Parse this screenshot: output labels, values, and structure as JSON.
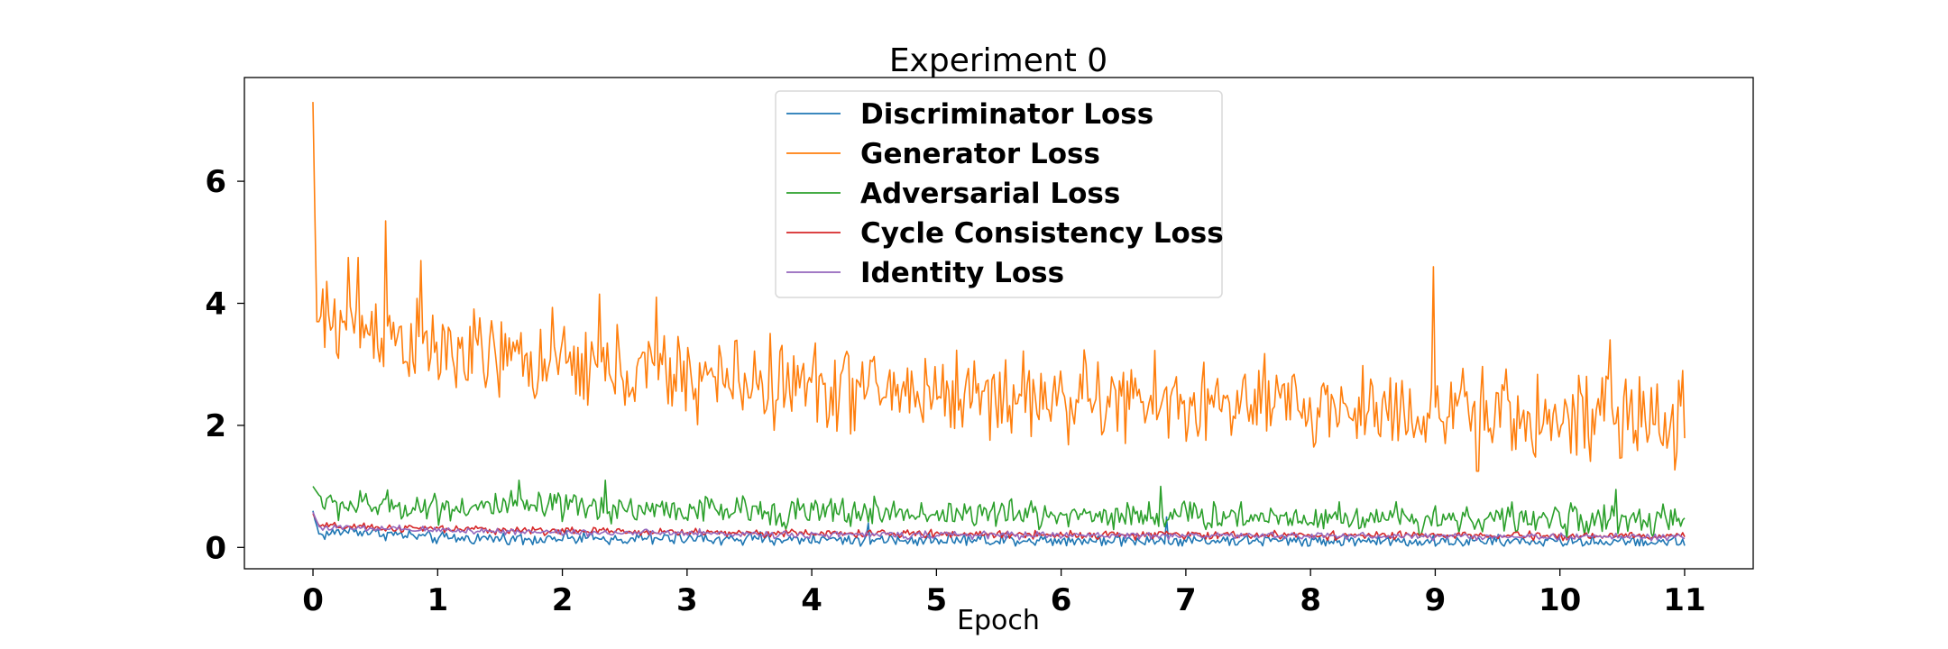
{
  "chart_data": {
    "type": "line",
    "title": "Experiment 0",
    "xlabel": "Epoch",
    "ylabel": "",
    "xlim": [
      -0.55,
      11.55
    ],
    "ylim": [
      -0.35,
      7.7
    ],
    "xticks": [
      0,
      1,
      2,
      3,
      4,
      5,
      6,
      7,
      8,
      9,
      10,
      11
    ],
    "yticks": [
      0,
      2,
      4,
      6
    ],
    "grid": false,
    "legend_position": "top-center",
    "n_points": 700,
    "series": [
      {
        "name": "Discriminator Loss",
        "color": "#1f77b4",
        "anchors": [
          [
            0,
            0.6
          ],
          [
            0.05,
            0.2
          ],
          [
            0.3,
            0.28
          ],
          [
            1,
            0.15
          ],
          [
            3,
            0.14
          ],
          [
            6,
            0.12
          ],
          [
            9,
            0.1
          ],
          [
            11,
            0.09
          ]
        ],
        "noise": 0.07,
        "spikes": [
          [
            0.02,
            0.45
          ],
          [
            4.45,
            0.4
          ],
          [
            6.85,
            0.5
          ]
        ]
      },
      {
        "name": "Generator Loss",
        "color": "#ff7f0e",
        "anchors": [
          [
            0,
            7.3
          ],
          [
            0.03,
            3.7
          ],
          [
            0.15,
            3.7
          ],
          [
            0.5,
            3.6
          ],
          [
            1,
            3.2
          ],
          [
            2,
            3.0
          ],
          [
            3,
            2.8
          ],
          [
            4,
            2.65
          ],
          [
            5,
            2.55
          ],
          [
            6,
            2.45
          ],
          [
            7,
            2.35
          ],
          [
            8,
            2.3
          ],
          [
            9,
            2.25
          ],
          [
            10,
            2.1
          ],
          [
            11,
            2.05
          ]
        ],
        "noise": 0.5,
        "spikes": [
          [
            0.28,
            4.75
          ],
          [
            0.36,
            4.75
          ],
          [
            0.58,
            5.35
          ],
          [
            0.86,
            4.7
          ],
          [
            2.3,
            4.15
          ],
          [
            2.75,
            4.1
          ],
          [
            8.98,
            4.6
          ],
          [
            9.34,
            1.25
          ],
          [
            10.4,
            3.4
          ],
          [
            10.99,
            2.9
          ]
        ]
      },
      {
        "name": "Adversarial Loss",
        "color": "#2ca02c",
        "anchors": [
          [
            0,
            1.0
          ],
          [
            0.1,
            0.7
          ],
          [
            0.5,
            0.68
          ],
          [
            2,
            0.65
          ],
          [
            4,
            0.58
          ],
          [
            6,
            0.54
          ],
          [
            8,
            0.5
          ],
          [
            10,
            0.46
          ],
          [
            11,
            0.42
          ]
        ],
        "noise": 0.17,
        "spikes": [
          [
            1.65,
            1.1
          ],
          [
            2.35,
            1.1
          ],
          [
            6.8,
            1.0
          ],
          [
            10.45,
            0.95
          ]
        ]
      },
      {
        "name": "Cycle Consistency Loss",
        "color": "#d62728",
        "anchors": [
          [
            0,
            0.55
          ],
          [
            0.05,
            0.35
          ],
          [
            0.5,
            0.32
          ],
          [
            2,
            0.27
          ],
          [
            4,
            0.23
          ],
          [
            6,
            0.21
          ],
          [
            8,
            0.2
          ],
          [
            11,
            0.18
          ]
        ],
        "noise": 0.045,
        "spikes": []
      },
      {
        "name": "Identity Loss",
        "color": "#9467bd",
        "anchors": [
          [
            0,
            0.58
          ],
          [
            0.05,
            0.33
          ],
          [
            0.5,
            0.3
          ],
          [
            2,
            0.25
          ],
          [
            4,
            0.21
          ],
          [
            6,
            0.2
          ],
          [
            8,
            0.19
          ],
          [
            11,
            0.17
          ]
        ],
        "noise": 0.04,
        "spikes": []
      }
    ]
  }
}
